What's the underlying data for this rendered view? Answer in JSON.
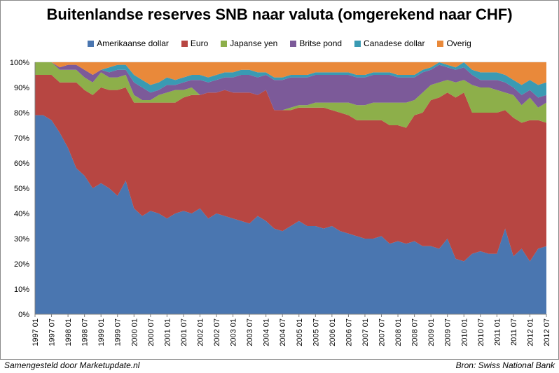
{
  "chart_data": {
    "type": "area",
    "stacked": true,
    "percent": true,
    "title": "Buitenlandse reserves SNB naar valuta (omgerekend naar CHF)",
    "ylim": [
      0,
      100
    ],
    "y_ticks": [
      "0%",
      "10%",
      "20%",
      "30%",
      "40%",
      "50%",
      "60%",
      "70%",
      "80%",
      "90%",
      "100%"
    ],
    "grid": true,
    "legend_position": "top",
    "categories": [
      "1997 01",
      "1997 07",
      "1998 01",
      "1998 07",
      "1999 01",
      "1999 07",
      "2000 01",
      "2000 07",
      "2001 01",
      "2001 07",
      "2002 01",
      "2002 07",
      "2003 01",
      "2003 07",
      "2004 01",
      "2004 07",
      "2005 01",
      "2005 07",
      "2006 01",
      "2006 07",
      "2007 01",
      "2007 07",
      "2008 01",
      "2008 07",
      "2009 01",
      "2009 07",
      "2010 01",
      "2010 07",
      "2011 01",
      "2011 07",
      "2012 01",
      "2012 07"
    ],
    "x": [
      0,
      1,
      2,
      3,
      4,
      5,
      6,
      7,
      8,
      9,
      10,
      11,
      12,
      13,
      14,
      15,
      16,
      17,
      18,
      19,
      20,
      21,
      22,
      23,
      24,
      25,
      26,
      27,
      28,
      29,
      30,
      31,
      32,
      33,
      34,
      35,
      36,
      37,
      38,
      39,
      40,
      41,
      42,
      43,
      44,
      45,
      46,
      47,
      48,
      49,
      50,
      51,
      52,
      53,
      54,
      55,
      56,
      57,
      58,
      59,
      60,
      61,
      62
    ],
    "series": [
      {
        "name": "Amerikaanse dollar",
        "color": "#4a76b0",
        "values": [
          79,
          79,
          77,
          72,
          66,
          58,
          55,
          50,
          52,
          50,
          47,
          53,
          42,
          39,
          41,
          40,
          38,
          40,
          41,
          40,
          42,
          38,
          40,
          39,
          38,
          37,
          36,
          39,
          37,
          34,
          33,
          35,
          37,
          35,
          35,
          34,
          35,
          33,
          32,
          31,
          30,
          30,
          31,
          28,
          29,
          28,
          29,
          27,
          27,
          26,
          30,
          22,
          21,
          24,
          25,
          24,
          24,
          34,
          23,
          26,
          21,
          26,
          27
        ]
      },
      {
        "name": "Euro",
        "color": "#b74642",
        "values": [
          16,
          16,
          18,
          20,
          26,
          34,
          34,
          37,
          38,
          39,
          42,
          37,
          42,
          45,
          43,
          44,
          46,
          44,
          45,
          47,
          45,
          50,
          48,
          50,
          50,
          51,
          52,
          48,
          52,
          47,
          48,
          46,
          45,
          47,
          47,
          48,
          46,
          47,
          47,
          46,
          47,
          47,
          46,
          47,
          46,
          46,
          50,
          53,
          58,
          60,
          58,
          64,
          67,
          56,
          55,
          56,
          56,
          47,
          55,
          50,
          56,
          51,
          49
        ]
      },
      {
        "name": "Japanse yen",
        "color": "#8daf4a",
        "values": [
          5,
          5,
          5,
          5,
          5,
          5,
          5,
          5,
          6,
          5,
          5,
          5,
          3,
          1,
          1,
          3,
          4,
          5,
          3,
          3,
          0,
          0,
          0,
          0,
          0,
          0,
          0,
          0,
          0,
          0,
          0,
          1,
          1,
          1,
          2,
          2,
          3,
          4,
          5,
          6,
          6,
          7,
          7,
          9,
          9,
          10,
          6,
          8,
          6,
          6,
          5,
          6,
          5,
          11,
          10,
          10,
          9,
          7,
          9,
          7,
          9,
          5,
          8
        ]
      },
      {
        "name": "Britse pond",
        "color": "#7c5a99",
        "values": [
          0,
          0,
          0,
          1,
          2,
          2,
          3,
          3,
          1,
          2,
          3,
          2,
          5,
          5,
          3,
          2,
          3,
          2,
          3,
          3,
          6,
          4,
          5,
          5,
          6,
          7,
          7,
          7,
          6,
          12,
          12,
          12,
          11,
          11,
          11,
          11,
          11,
          11,
          11,
          11,
          11,
          11,
          11,
          11,
          10,
          10,
          9,
          8,
          6,
          7,
          5,
          5,
          5,
          4,
          3,
          3,
          4,
          4,
          3,
          4,
          3,
          4,
          3
        ]
      },
      {
        "name": "Canadese dollar",
        "color": "#3a9ab3",
        "values": [
          0,
          0,
          0,
          0,
          0,
          0,
          0,
          0,
          0,
          2,
          2,
          2,
          3,
          3,
          3,
          3,
          3,
          2,
          2,
          2,
          2,
          2,
          2,
          2,
          2,
          2,
          2,
          2,
          1,
          1,
          1,
          1,
          1,
          1,
          1,
          1,
          1,
          1,
          1,
          1,
          1,
          1,
          1,
          1,
          1,
          1,
          1,
          1,
          1,
          1,
          1,
          1,
          2,
          2,
          3,
          3,
          3,
          3,
          3,
          4,
          4,
          5,
          5
        ]
      },
      {
        "name": "Overig",
        "color": "#e9893a",
        "values": [
          0,
          0,
          0,
          2,
          1,
          1,
          3,
          5,
          3,
          2,
          1,
          1,
          5,
          7,
          9,
          8,
          6,
          7,
          6,
          5,
          5,
          6,
          5,
          4,
          4,
          3,
          3,
          4,
          4,
          6,
          6,
          5,
          5,
          5,
          4,
          4,
          4,
          4,
          4,
          5,
          5,
          4,
          4,
          4,
          5,
          5,
          5,
          3,
          2,
          0,
          1,
          2,
          0,
          3,
          4,
          4,
          4,
          5,
          7,
          9,
          7,
          9,
          8
        ]
      }
    ]
  },
  "footer": {
    "left": "Samengesteld door Marketupdate.nl",
    "right": "Bron: Swiss National Bank"
  }
}
